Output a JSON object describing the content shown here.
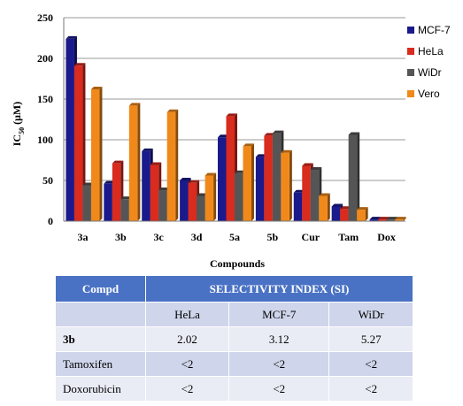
{
  "chart_data": {
    "type": "bar",
    "xlabel": "Compounds",
    "ylabel_main": "IC",
    "ylabel_sub": "50",
    "ylabel_unit": "(μM)",
    "ylim": [
      0,
      250
    ],
    "yticks": [
      0,
      50,
      100,
      150,
      200,
      250
    ],
    "grid": true,
    "legend_position": "right",
    "categories": [
      "3a",
      "3b",
      "3c",
      "3d",
      "5a",
      "5b",
      "Cur",
      "Tam",
      "Dox"
    ],
    "series": [
      {
        "name": "MCF-7",
        "color": "#1a1a8c",
        "values": [
          224,
          46,
          86,
          50,
          103,
          79,
          35,
          18,
          2
        ]
      },
      {
        "name": "HeLa",
        "color": "#d92b1e",
        "values": [
          191,
          71,
          69,
          47,
          129,
          105,
          68,
          15,
          2
        ]
      },
      {
        "name": "WiDr",
        "color": "#555555",
        "values": [
          44,
          27,
          38,
          31,
          59,
          108,
          63,
          106,
          2
        ]
      },
      {
        "name": "Vero",
        "color": "#f0891a",
        "values": [
          162,
          142,
          134,
          56,
          92,
          84,
          31,
          14,
          2
        ]
      }
    ]
  },
  "table": {
    "header_col1": "Compd",
    "header_main": "SELECTIVITY INDEX (SI)",
    "columns": [
      "HeLa",
      "MCF-7",
      "WiDr"
    ],
    "rows": [
      {
        "name": "3b",
        "values": [
          "2.02",
          "3.12",
          "5.27"
        ]
      },
      {
        "name": "Tamoxifen",
        "values": [
          "<2",
          "<2",
          "<2"
        ]
      },
      {
        "name": "Doxorubicin",
        "values": [
          "<2",
          "<2",
          "<2"
        ]
      }
    ]
  }
}
